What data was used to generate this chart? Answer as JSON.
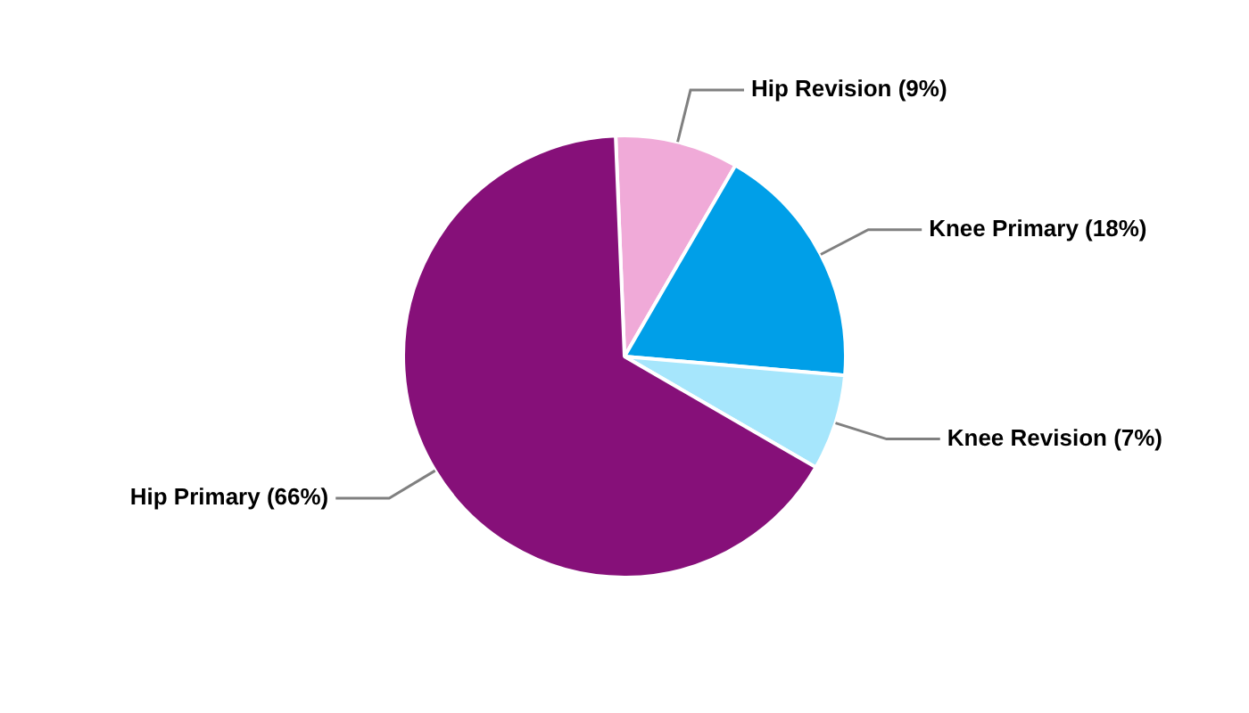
{
  "chart_data": {
    "type": "pie",
    "categories": [
      "Hip Revision (9%)",
      "Knee Primary (18%)",
      "Knee Revision (7%)",
      "Hip Primary (66%)"
    ],
    "values": [
      9,
      18,
      7,
      66
    ],
    "colors": [
      "#f0aad8",
      "#009fe8",
      "#a6e6fc",
      "#861079"
    ],
    "legend": false
  }
}
